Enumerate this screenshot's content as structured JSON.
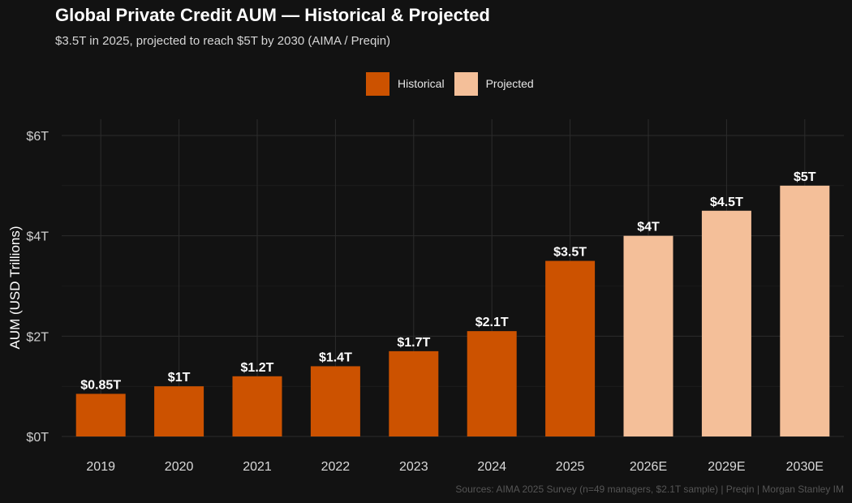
{
  "chart_data": {
    "type": "bar",
    "title": "Global Private Credit AUM — Historical & Projected",
    "subtitle": "$3.5T in 2025, projected to reach $5T by 2030 (AIMA / Preqin)",
    "categories": [
      "2019",
      "2020",
      "2021",
      "2022",
      "2023",
      "2024",
      "2025",
      "2026E",
      "2029E",
      "2030E"
    ],
    "values": [
      0.85,
      1.0,
      1.2,
      1.4,
      1.7,
      2.1,
      3.5,
      4.0,
      4.5,
      5.0
    ],
    "value_labels": [
      "$0.85T",
      "$1T",
      "$1.2T",
      "$1.4T",
      "$1.7T",
      "$2.1T",
      "$3.5T",
      "$4T",
      "$4.5T",
      "$5T"
    ],
    "groups": [
      "Historical",
      "Historical",
      "Historical",
      "Historical",
      "Historical",
      "Historical",
      "Historical",
      "Projected",
      "Projected",
      "Projected"
    ],
    "legend": {
      "position": "top",
      "entries": [
        {
          "name": "Historical",
          "color": "#cc5200"
        },
        {
          "name": "Projected",
          "color": "#f4bf99"
        }
      ]
    },
    "xlabel": "",
    "ylabel": "AUM (USD Trillions)",
    "ylim": [
      0,
      6
    ],
    "yticks": [
      0,
      2,
      4,
      6
    ],
    "ytick_labels": [
      "$0T",
      "$2T",
      "$4T",
      "$6T"
    ],
    "grid": true,
    "source": "Sources: AIMA 2025 Survey (n=49 managers, $2.1T sample) | Preqin | Morgan Stanley IM"
  },
  "colors": {
    "background": "#121212",
    "grid": "#2c2c2c",
    "historical": "#cc5200",
    "projected": "#f4bf99"
  }
}
